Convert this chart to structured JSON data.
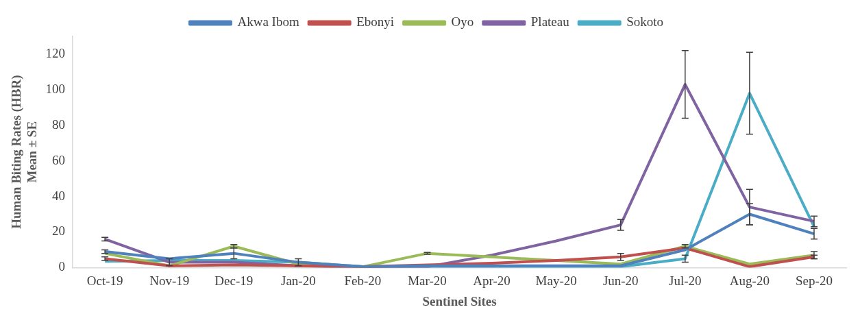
{
  "chart_data": {
    "type": "line",
    "xlabel": "Sentinel Sites",
    "ylabel": "Human Biting Rates (HBR)\nMean ± SE",
    "categories": [
      "Oct-19",
      "Nov-19",
      "Dec-19",
      "Jan-20",
      "Feb-20",
      "Mar-20",
      "Apr-20",
      "May-20",
      "Jun-20",
      "Jul-20",
      "Aug-20",
      "Sep-20"
    ],
    "series": [
      {
        "name": "Akwa Ibom",
        "color": "#4f81bd",
        "values": [
          9,
          5,
          8,
          3,
          0.5,
          1,
          1,
          1,
          1,
          10,
          30,
          19
        ],
        "errors": [
          1,
          null,
          3,
          2,
          null,
          null,
          null,
          null,
          null,
          null,
          6,
          3
        ]
      },
      {
        "name": "Ebonyi",
        "color": "#c0504d",
        "values": [
          5,
          1,
          1.5,
          1,
          0.5,
          1.5,
          2.5,
          4,
          6,
          11,
          0.5,
          6
        ],
        "errors": [
          1,
          null,
          null,
          null,
          null,
          null,
          null,
          null,
          2,
          null,
          null,
          1
        ]
      },
      {
        "name": "Oyo",
        "color": "#9bbb59",
        "values": [
          8,
          1,
          12,
          2,
          0.5,
          8,
          6,
          4,
          2,
          12,
          2,
          7
        ],
        "errors": [
          null,
          null,
          1,
          null,
          null,
          0.5,
          null,
          null,
          null,
          1,
          null,
          2
        ]
      },
      {
        "name": "Plateau",
        "color": "#8064a2",
        "values": [
          16,
          3,
          3,
          1,
          0,
          0.5,
          7,
          15,
          24,
          103,
          34,
          26
        ],
        "errors": [
          1,
          2,
          null,
          null,
          null,
          null,
          null,
          null,
          3,
          19,
          10,
          3
        ]
      },
      {
        "name": "Sokoto",
        "color": "#4bacc6",
        "values": [
          3.5,
          4,
          4,
          3,
          0.5,
          0.5,
          0.5,
          0.5,
          0.5,
          5,
          98,
          23
        ],
        "errors": [
          null,
          null,
          null,
          null,
          null,
          null,
          null,
          null,
          null,
          2,
          23,
          null
        ]
      }
    ],
    "ylim": [
      0,
      130
    ],
    "yticks": [
      0,
      20,
      40,
      60,
      80,
      100,
      120
    ],
    "grid": false,
    "legend": "top",
    "marker": "none",
    "line_style": "solid"
  }
}
